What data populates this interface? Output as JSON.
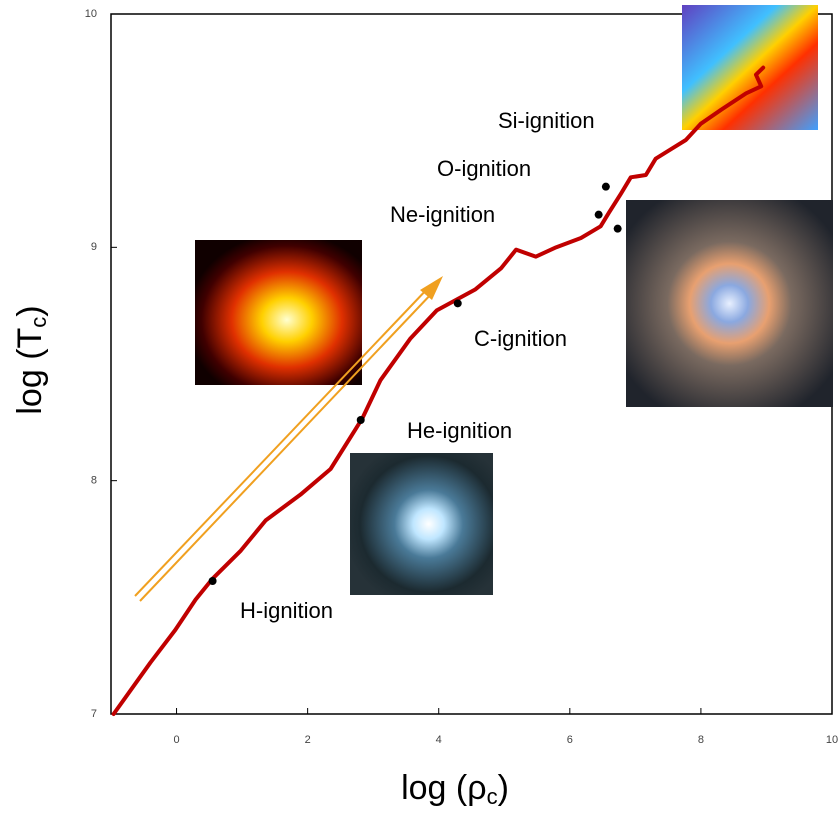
{
  "chart_data": {
    "type": "line",
    "xlabel": [
      "log (ρ",
      "c",
      ")"
    ],
    "ylabel": [
      "log (T",
      "c",
      ")"
    ],
    "xlim": [
      -1,
      10
    ],
    "ylim": [
      7,
      10
    ],
    "xticks": [
      0,
      2,
      4,
      6,
      8,
      10
    ],
    "yticks": [
      7,
      8,
      9,
      10
    ],
    "grid": false,
    "annotations": [
      "Si-ignition",
      "O-ignition",
      "Ne-ignition",
      "C-ignition",
      "He-ignition",
      "H-ignition"
    ],
    "series": [
      {
        "color": "#c00000",
        "x": [
          -0.96,
          -0.4,
          -0.02,
          0.29,
          0.55,
          0.98,
          1.36,
          1.89,
          2.35,
          2.73,
          2.84,
          3.11,
          3.57,
          3.97,
          4.56,
          4.95,
          5.18,
          5.48,
          5.79,
          6.17,
          6.47,
          6.6,
          6.78,
          6.93,
          7.16,
          7.31,
          7.54,
          7.77,
          8.0,
          8.31,
          8.69,
          8.92,
          8.84,
          8.95
        ],
        "values": [
          7.0,
          7.22,
          7.36,
          7.49,
          7.58,
          7.7,
          7.83,
          7.94,
          8.05,
          8.22,
          8.27,
          8.43,
          8.61,
          8.73,
          8.82,
          8.91,
          8.99,
          8.96,
          9.0,
          9.04,
          9.09,
          9.15,
          9.23,
          9.3,
          9.31,
          9.38,
          9.42,
          9.46,
          9.53,
          9.59,
          9.66,
          9.69,
          9.74,
          9.77
        ]
      },
      {
        "type": "scatter",
        "color": "#000000",
        "x": [
          0.55,
          2.81,
          4.29,
          6.44,
          6.55,
          6.73
        ],
        "values": [
          7.57,
          8.26,
          8.76,
          9.14,
          9.26,
          9.08
        ]
      }
    ]
  }
}
